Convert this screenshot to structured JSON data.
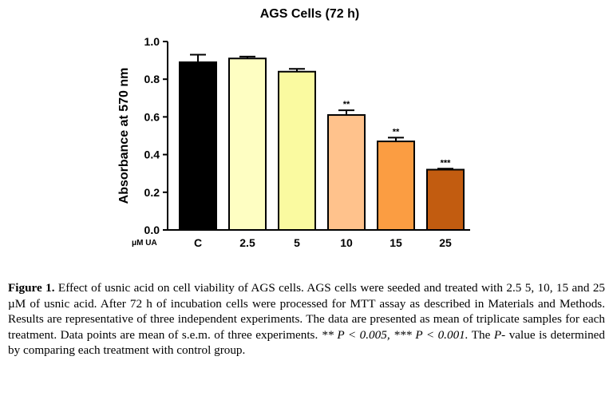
{
  "chart_data": {
    "type": "bar",
    "title": "AGS Cells (72 h)",
    "ylabel": "Absorbance at 570 nm",
    "x_unit_label": "μM UA",
    "ylim": [
      0.0,
      1.0
    ],
    "yticks": [
      "0.0",
      "0.2",
      "0.4",
      "0.6",
      "0.8",
      "1.0"
    ],
    "categories": [
      "C",
      "2.5",
      "5",
      "10",
      "15",
      "25"
    ],
    "values": [
      0.89,
      0.91,
      0.84,
      0.61,
      0.47,
      0.32
    ],
    "errors": [
      0.04,
      0.01,
      0.015,
      0.025,
      0.02,
      0.005
    ],
    "significance": [
      "",
      "",
      "",
      "**",
      "**",
      "***"
    ],
    "colors": [
      "#000000",
      "#fefec2",
      "#fafaa0",
      "#ffc28c",
      "#fb9d42",
      "#c25c10"
    ],
    "grid": false
  },
  "caption": {
    "label": "Figure 1.",
    "text_1": " Effect of usnic acid on cell viability of AGS cells. AGS cells were seeded and treated with 2.5 5, 10, 15 and 25 µM of usnic acid. After 72 h of incubation cells were processed for MTT assay as described in Materials and Methods. Results are representative of three independent experiments. The data are presented as mean of triplicate samples for each treatment. Data points are mean of s.e.m. of three experiments. ",
    "p1": "** P < 0.005, *** P < 0.001.",
    "text_2": " The ",
    "p_label": "P",
    "text_3": "- value is determined by comparing each treatment with control group."
  }
}
